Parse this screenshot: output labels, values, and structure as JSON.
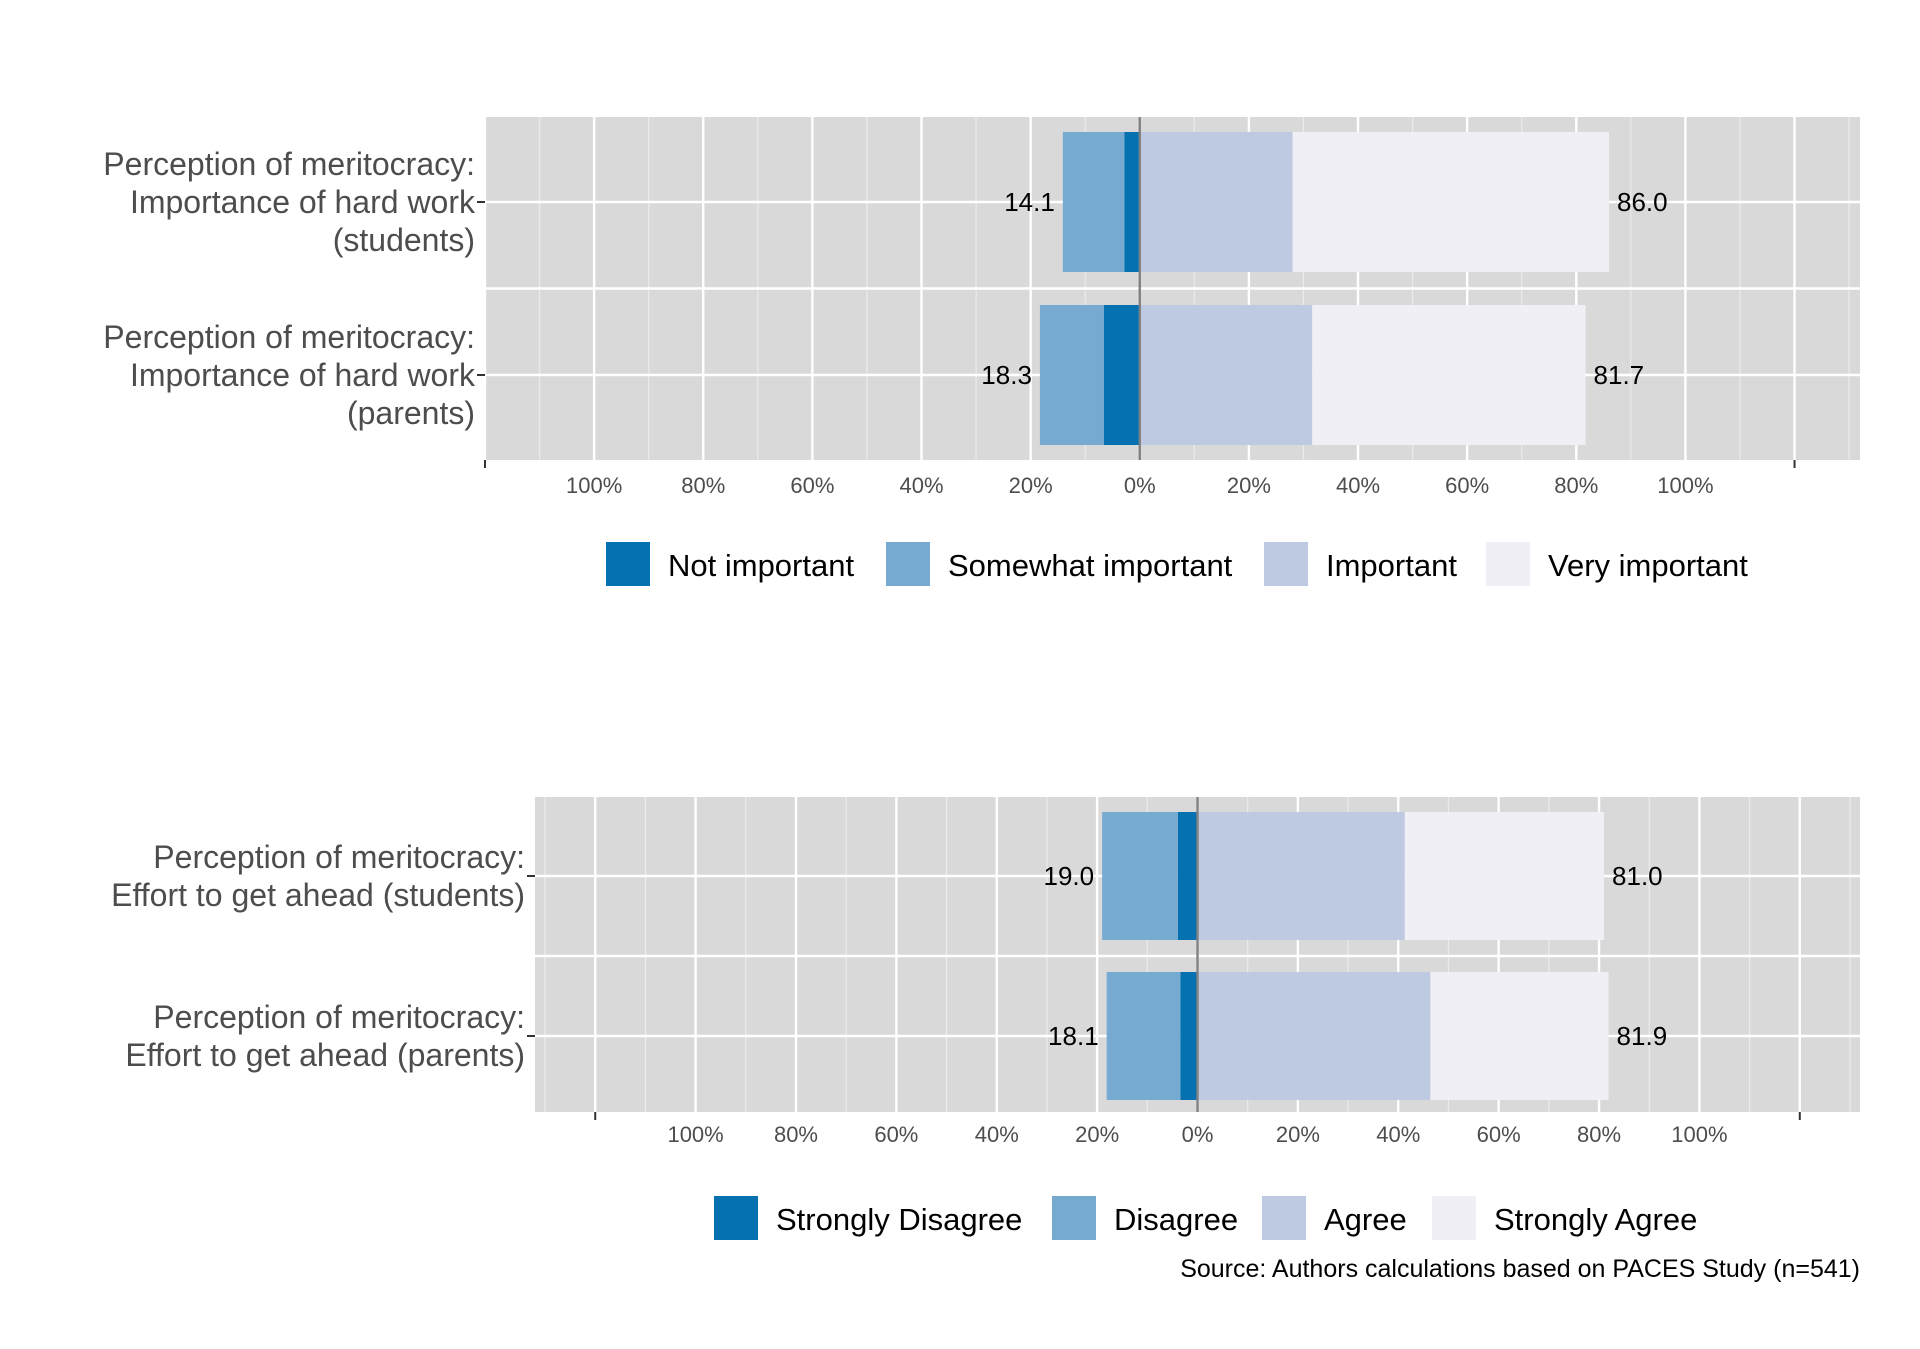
{
  "caption": "Source: Authors calculations based on PACES Study (n=541)",
  "chart_data": [
    {
      "type": "bar",
      "orientation": "horizontal-diverging",
      "categories": [
        [
          "Perception of meritocracy:",
          "Importance of hard work",
          "(students)"
        ],
        [
          "Perception of meritocracy:",
          "Importance of hard work",
          "(parents)"
        ]
      ],
      "series": [
        {
          "name": "Not important",
          "color": "#0571b0",
          "side": "negative",
          "values": [
            2.8,
            6.6
          ]
        },
        {
          "name": "Somewhat important",
          "color": "#76aad1",
          "side": "negative",
          "values": [
            11.3,
            11.7
          ]
        },
        {
          "name": "Important",
          "color": "#bec9e2",
          "side": "positive",
          "values": [
            28.0,
            31.6
          ]
        },
        {
          "name": "Very important",
          "color": "#f0eff6",
          "side": "positive",
          "values": [
            58.0,
            50.1
          ]
        }
      ],
      "neg_totals": [
        "14.1",
        "18.3"
      ],
      "pos_totals": [
        "86.0",
        "81.7"
      ],
      "xlim": [
        -120,
        132
      ],
      "x_ticks": [
        -100,
        -80,
        -60,
        -40,
        -20,
        0,
        20,
        40,
        60,
        80,
        100
      ],
      "x_tick_labels": [
        "100%",
        "80%",
        "60%",
        "40%",
        "20%",
        "0%",
        "20%",
        "40%",
        "60%",
        "80%",
        "100%"
      ],
      "grid": true,
      "legend_position": "bottom"
    },
    {
      "type": "bar",
      "orientation": "horizontal-diverging",
      "categories": [
        [
          "Perception of meritocracy:",
          "Effort to get ahead (students)"
        ],
        [
          "Perception of meritocracy:",
          "Effort to get ahead  (parents)"
        ]
      ],
      "series": [
        {
          "name": "Strongly Disagree",
          "color": "#0571b0",
          "side": "negative",
          "values": [
            3.9,
            3.4
          ]
        },
        {
          "name": "Disagree",
          "color": "#76aad1",
          "side": "negative",
          "values": [
            15.1,
            14.7
          ]
        },
        {
          "name": "Agree",
          "color": "#bec9e2",
          "side": "positive",
          "values": [
            41.3,
            46.4
          ]
        },
        {
          "name": "Strongly Agree",
          "color": "#f0eff6",
          "side": "positive",
          "values": [
            39.7,
            35.5
          ]
        }
      ],
      "neg_totals": [
        "19.0",
        "18.1"
      ],
      "pos_totals": [
        "81.0",
        "81.9"
      ],
      "xlim": [
        -132,
        132
      ],
      "x_ticks": [
        -100,
        -80,
        -60,
        -40,
        -20,
        0,
        20,
        40,
        60,
        80,
        100
      ],
      "x_tick_labels": [
        "100%",
        "80%",
        "60%",
        "40%",
        "20%",
        "0%",
        "20%",
        "40%",
        "60%",
        "80%",
        "100%"
      ],
      "grid": true,
      "legend_position": "bottom"
    }
  ]
}
